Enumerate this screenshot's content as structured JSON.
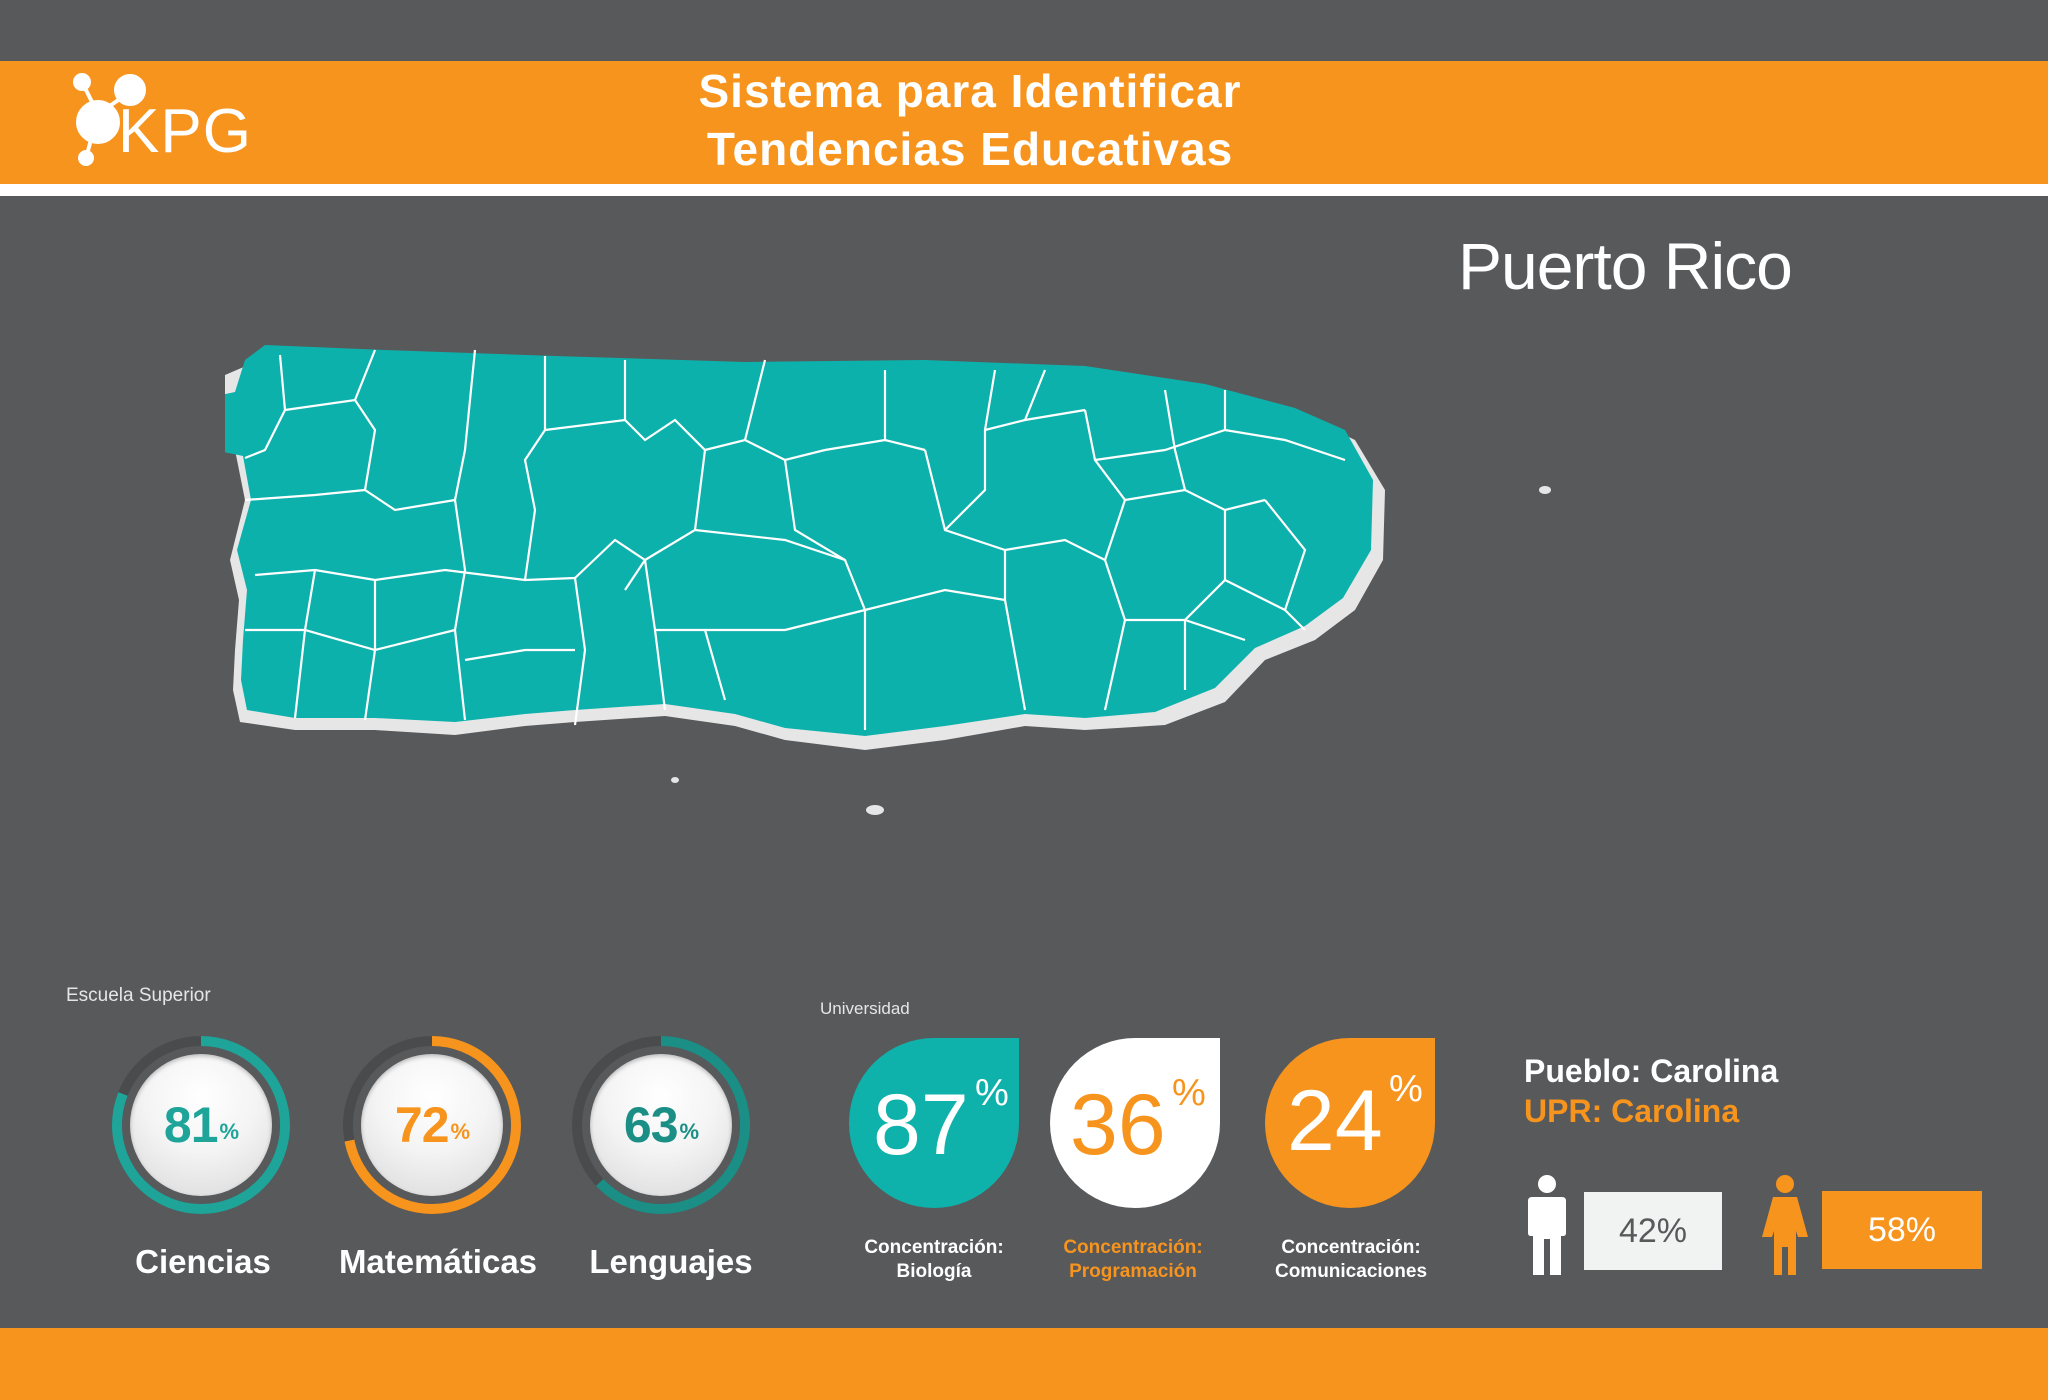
{
  "header": {
    "title_line1": "Sistema para Identificar",
    "title_line2": "Tendencias Educativas",
    "logo_text": "KPG"
  },
  "region": {
    "name": "Puerto Rico"
  },
  "escuela_superior": {
    "label": "Escuela Superior",
    "subjects": [
      {
        "name": "Ciencias",
        "value": "81",
        "pct_symbol": "%",
        "color": "#1fa49a"
      },
      {
        "name": "Matemáticas",
        "value": "72",
        "pct_symbol": "%",
        "color": "#f7941d"
      },
      {
        "name": "Lenguajes",
        "value": "63",
        "pct_symbol": "%",
        "color": "#1b8f86"
      }
    ]
  },
  "universidad": {
    "label": "Universidad",
    "concentrations": [
      {
        "value": "87",
        "pct_symbol": "%",
        "label_line1": "Concentración:",
        "label_line2": "Biología",
        "badge_color": "#0fb2aa",
        "text_color": "#ffffff"
      },
      {
        "value": "36",
        "pct_symbol": "%",
        "label_line1": "Concentración:",
        "label_line2": "Programación",
        "badge_color": "#ffffff",
        "text_color": "#f7941d"
      },
      {
        "value": "24",
        "pct_symbol": "%",
        "label_line1": "Concentración:",
        "label_line2": "Comunicaciones",
        "badge_color": "#f7941d",
        "text_color": "#ffffff"
      }
    ]
  },
  "pueblo": {
    "title": "Pueblo: Carolina",
    "upr": "UPR: Carolina",
    "male_percent": "42%",
    "female_percent": "58%"
  },
  "colors": {
    "background": "#58595b",
    "accent_orange": "#f7941d",
    "accent_teal": "#0fb2aa",
    "map_fill": "#0db1ab"
  }
}
